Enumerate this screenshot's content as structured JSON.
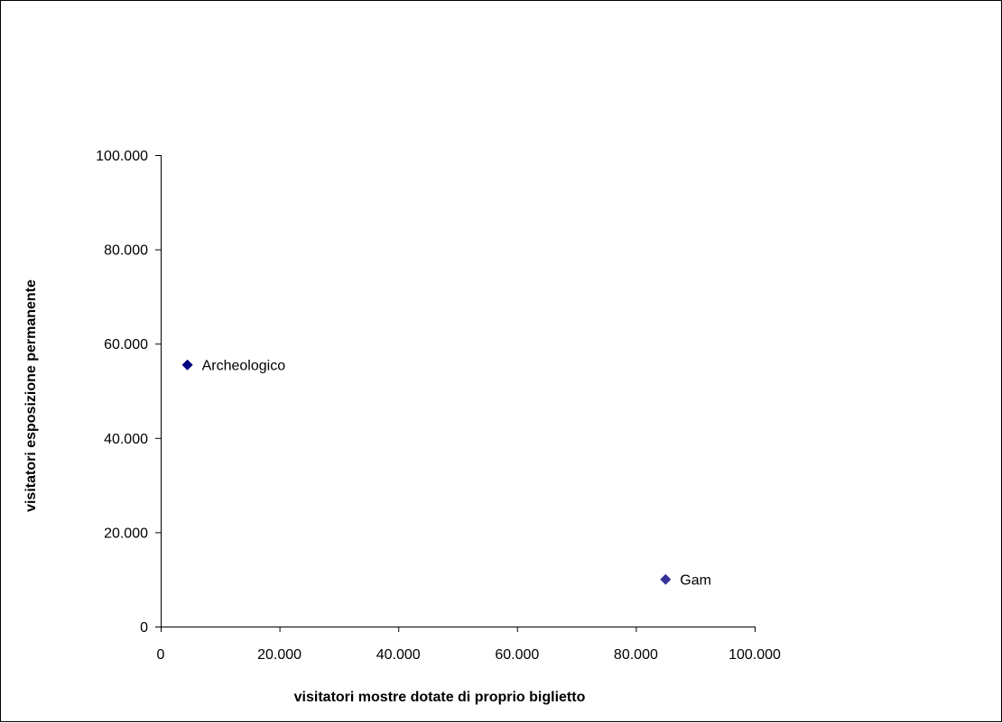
{
  "chart_data": {
    "type": "scatter",
    "xlabel": "visitatori mostre dotate di proprio biglietto",
    "ylabel": "visitatori esposizione permanente",
    "xlim": [
      0,
      100000
    ],
    "ylim": [
      0,
      100000
    ],
    "x_ticks": [
      0,
      20000,
      40000,
      60000,
      80000,
      100000
    ],
    "x_tick_labels": [
      "0",
      "20.000",
      "40.000",
      "60.000",
      "80.000",
      "100.000"
    ],
    "y_ticks": [
      0,
      20000,
      40000,
      60000,
      80000,
      100000
    ],
    "y_tick_labels": [
      "0",
      "20.000",
      "40.000",
      "60.000",
      "80.000",
      "100.000"
    ],
    "grid": false,
    "points": [
      {
        "label": "Archeologico",
        "x": 4500,
        "y": 55500,
        "color": "#000080"
      },
      {
        "label": "Gam",
        "x": 85000,
        "y": 10000,
        "color": "#333399"
      }
    ]
  }
}
